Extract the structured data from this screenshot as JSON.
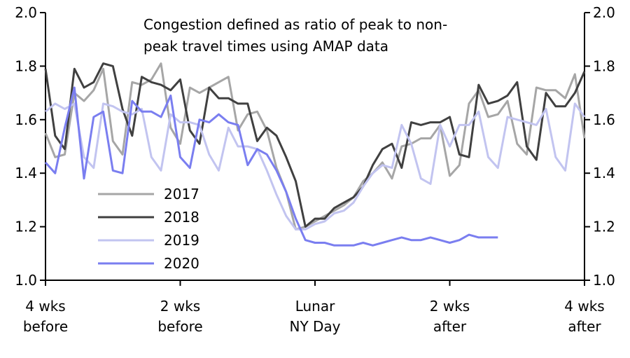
{
  "chart_data": {
    "type": "line",
    "annotation": [
      "Congestion defined as ratio of peak to non-",
      "peak travel times using AMAP data"
    ],
    "ylim": [
      1.0,
      2.0
    ],
    "yticks": [
      "1.0",
      "1.2",
      "1.4",
      "1.6",
      "1.8",
      "2.0"
    ],
    "xticks": [
      {
        "at": 0,
        "lines": [
          "4 wks",
          "before"
        ]
      },
      {
        "at": 14,
        "lines": [
          "2 wks",
          "before"
        ]
      },
      {
        "at": 28,
        "lines": [
          "Lunar",
          "NY Day"
        ]
      },
      {
        "at": 42,
        "lines": [
          "2 wks",
          "after"
        ]
      },
      {
        "at": 56,
        "lines": [
          "4 wks",
          "after"
        ]
      }
    ],
    "xlim": [
      0,
      56
    ],
    "grid": false,
    "legend_position": "lower-left",
    "series": [
      {
        "name": "2017",
        "color": "#a6a6a6",
        "values": [
          1.55,
          1.46,
          1.47,
          1.7,
          1.67,
          1.71,
          1.79,
          1.52,
          1.47,
          1.74,
          1.73,
          1.75,
          1.81,
          1.57,
          1.51,
          1.72,
          1.7,
          1.72,
          1.74,
          1.76,
          1.56,
          1.62,
          1.63,
          1.56,
          1.42,
          1.33,
          1.19,
          1.2,
          1.22,
          1.24,
          1.26,
          1.28,
          1.31,
          1.37,
          1.4,
          1.44,
          1.38,
          1.5,
          1.51,
          1.53,
          1.53,
          1.58,
          1.39,
          1.43,
          1.66,
          1.71,
          1.61,
          1.62,
          1.67,
          1.51,
          1.47,
          1.72,
          1.71,
          1.71,
          1.68,
          1.77,
          1.53
        ]
      },
      {
        "name": "2018",
        "color": "#404040",
        "values": [
          1.79,
          1.54,
          1.49,
          1.79,
          1.72,
          1.74,
          1.81,
          1.8,
          1.64,
          1.54,
          1.76,
          1.74,
          1.73,
          1.71,
          1.75,
          1.56,
          1.51,
          1.72,
          1.68,
          1.68,
          1.66,
          1.66,
          1.52,
          1.57,
          1.54,
          1.46,
          1.37,
          1.2,
          1.23,
          1.23,
          1.27,
          1.29,
          1.31,
          1.35,
          1.43,
          1.49,
          1.51,
          1.42,
          1.59,
          1.58,
          1.59,
          1.59,
          1.61,
          1.47,
          1.46,
          1.73,
          1.66,
          1.67,
          1.69,
          1.74,
          1.5,
          1.45,
          1.7,
          1.65,
          1.65,
          1.7,
          1.78
        ]
      },
      {
        "name": "2019",
        "color": "#c2c4f0",
        "values": [
          1.63,
          1.66,
          1.64,
          1.66,
          1.46,
          1.42,
          1.66,
          1.65,
          1.63,
          1.62,
          1.64,
          1.46,
          1.41,
          1.62,
          1.59,
          1.59,
          1.58,
          1.47,
          1.41,
          1.57,
          1.5,
          1.5,
          1.49,
          1.41,
          1.32,
          1.24,
          1.19,
          1.19,
          1.21,
          1.22,
          1.25,
          1.26,
          1.29,
          1.35,
          1.4,
          1.43,
          1.42,
          1.58,
          1.51,
          1.38,
          1.36,
          1.58,
          1.5,
          1.58,
          1.58,
          1.63,
          1.46,
          1.42,
          1.61,
          1.6,
          1.59,
          1.58,
          1.64,
          1.46,
          1.41,
          1.66,
          1.61
        ]
      },
      {
        "name": "2020",
        "color": "#7a7ef0",
        "values": [
          1.44,
          1.4,
          1.57,
          1.72,
          1.38,
          1.61,
          1.63,
          1.41,
          1.4,
          1.67,
          1.63,
          1.63,
          1.61,
          1.69,
          1.46,
          1.42,
          1.6,
          1.59,
          1.62,
          1.59,
          1.58,
          1.43,
          1.49,
          1.47,
          1.41,
          1.33,
          1.23,
          1.15,
          1.14,
          1.14,
          1.13,
          1.13,
          1.13,
          1.14,
          1.13,
          1.14,
          1.15,
          1.16,
          1.15,
          1.15,
          1.16,
          1.15,
          1.14,
          1.15,
          1.17,
          1.16,
          1.16,
          1.16
        ]
      }
    ]
  }
}
